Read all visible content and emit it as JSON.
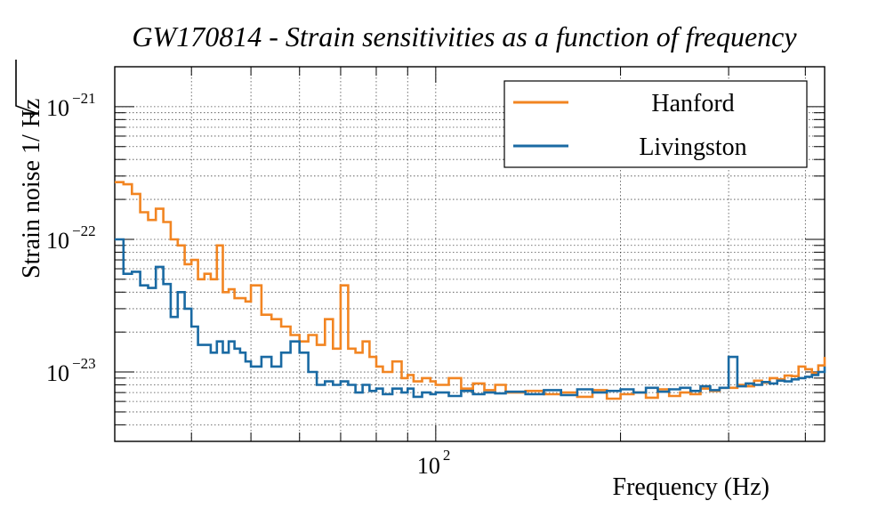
{
  "chart_data": {
    "type": "line",
    "title": "GW170814 - Strain sensitivities as a function of frequency",
    "xlabel": "Frequency (Hz)",
    "ylabel_prefix": "Strain noise 1/",
    "ylabel_radicand": "Hz",
    "xscale": "log",
    "yscale": "log",
    "xlim": [
      30,
      430
    ],
    "ylim": [
      3e-24,
      2e-21
    ],
    "grid": true,
    "legend_position": "top-right",
    "x_tick_labels": [
      {
        "value": 100,
        "base": "10",
        "exponent": "2"
      }
    ],
    "y_tick_labels": [
      {
        "value": 1e-21,
        "base": "10",
        "exponent": "−21"
      },
      {
        "value": 1e-22,
        "base": "10",
        "exponent": "−22"
      },
      {
        "value": 1e-23,
        "base": "10",
        "exponent": "−23"
      }
    ],
    "series": [
      {
        "name": "Hanford",
        "color": "#f28522",
        "x": [
          30,
          31,
          32,
          33,
          34,
          35,
          36,
          37,
          38,
          39,
          40,
          41,
          42,
          43,
          44,
          45,
          46,
          47,
          48,
          49,
          50,
          52,
          54,
          56,
          58,
          60,
          62,
          64,
          66,
          68,
          70,
          72,
          74,
          76,
          78,
          80,
          82,
          85,
          88,
          90,
          92,
          95,
          98,
          100,
          105,
          110,
          115,
          120,
          125,
          130,
          140,
          150,
          160,
          170,
          180,
          190,
          200,
          210,
          220,
          230,
          240,
          250,
          260,
          270,
          280,
          290,
          300,
          310,
          320,
          330,
          340,
          350,
          360,
          370,
          380,
          390,
          400,
          410,
          420,
          430
        ],
        "values": [
          2.7e-22,
          2.6e-22,
          2.2e-22,
          1.6e-22,
          1.4e-22,
          1.7e-22,
          1.35e-22,
          1e-22,
          9e-23,
          6.5e-23,
          7e-23,
          5e-23,
          5.5e-23,
          5e-23,
          9e-23,
          4e-23,
          4.2e-23,
          3.6e-23,
          3.6e-23,
          3.4e-23,
          4.5e-23,
          2.7e-23,
          2.5e-23,
          2.2e-23,
          1.9e-23,
          1.7e-23,
          1.9e-23,
          1.6e-23,
          2.5e-23,
          1.5e-23,
          4.5e-23,
          1.5e-23,
          1.4e-23,
          1.7e-23,
          1.3e-23,
          1.1e-23,
          1e-23,
          1.2e-23,
          9e-24,
          9.5e-24,
          8.5e-24,
          9e-24,
          8.5e-24,
          8e-24,
          9e-24,
          7.5e-24,
          8.2e-24,
          7.3e-24,
          8e-24,
          7e-24,
          7.2e-24,
          6.8e-24,
          7e-24,
          6.5e-24,
          7.3e-24,
          6.3e-24,
          6.8e-24,
          7e-24,
          6.4e-24,
          7.4e-24,
          6.6e-24,
          7e-24,
          6.8e-24,
          7.5e-24,
          7.2e-24,
          7.6e-24,
          7.6e-24,
          8e-24,
          7.8e-24,
          8.6e-24,
          8.3e-24,
          9e-24,
          8.8e-24,
          9.4e-24,
          9.3e-24,
          1.1e-23,
          1.05e-23,
          9.8e-24,
          1.12e-23,
          1.3e-23
        ]
      },
      {
        "name": "Livingston",
        "color": "#1a6aa3",
        "x": [
          30,
          31,
          32,
          33,
          34,
          35,
          36,
          37,
          38,
          39,
          40,
          41,
          42,
          43,
          44,
          45,
          46,
          47,
          48,
          49,
          50,
          52,
          54,
          56,
          58,
          60,
          62,
          64,
          66,
          68,
          70,
          72,
          74,
          76,
          78,
          80,
          82,
          85,
          88,
          90,
          92,
          95,
          98,
          100,
          105,
          110,
          115,
          120,
          125,
          130,
          140,
          150,
          160,
          170,
          180,
          190,
          200,
          210,
          220,
          230,
          240,
          250,
          260,
          270,
          280,
          290,
          300,
          310,
          320,
          330,
          340,
          350,
          360,
          370,
          380,
          390,
          400,
          410,
          420,
          430
        ],
        "values": [
          1e-22,
          5.5e-23,
          5.7e-23,
          4.5e-23,
          4.3e-23,
          6.2e-23,
          4.6e-23,
          2.6e-23,
          4e-23,
          3e-23,
          2.2e-23,
          1.6e-23,
          1.6e-23,
          1.4e-23,
          1.7e-23,
          1.4e-23,
          1.7e-23,
          1.5e-23,
          1.4e-23,
          1.2e-23,
          1.1e-23,
          1.3e-23,
          1.1e-23,
          1.4e-23,
          1.7e-23,
          1.4e-23,
          1e-23,
          8e-24,
          8.5e-24,
          8e-24,
          8.5e-24,
          8e-24,
          7e-24,
          8e-24,
          7.2e-24,
          7.5e-24,
          6.8e-24,
          7.5e-24,
          7e-24,
          7.5e-24,
          6.5e-24,
          7e-24,
          6.8e-24,
          7e-24,
          6.6e-24,
          7.2e-24,
          6.8e-24,
          7e-24,
          6.9e-24,
          7.1e-24,
          6.8e-24,
          7.3e-24,
          6.7e-24,
          7.4e-24,
          7e-24,
          7.2e-24,
          7.4e-24,
          7e-24,
          7.6e-24,
          7.1e-24,
          7.4e-24,
          7.6e-24,
          7.2e-24,
          7.8e-24,
          7.3e-24,
          7.6e-24,
          1.3e-23,
          7.8e-24,
          8.2e-24,
          8e-24,
          8.4e-24,
          8.2e-24,
          8.6e-24,
          8.5e-24,
          8.8e-24,
          9e-24,
          9.2e-24,
          9.5e-24,
          1e-23,
          1.1e-23
        ]
      }
    ]
  }
}
